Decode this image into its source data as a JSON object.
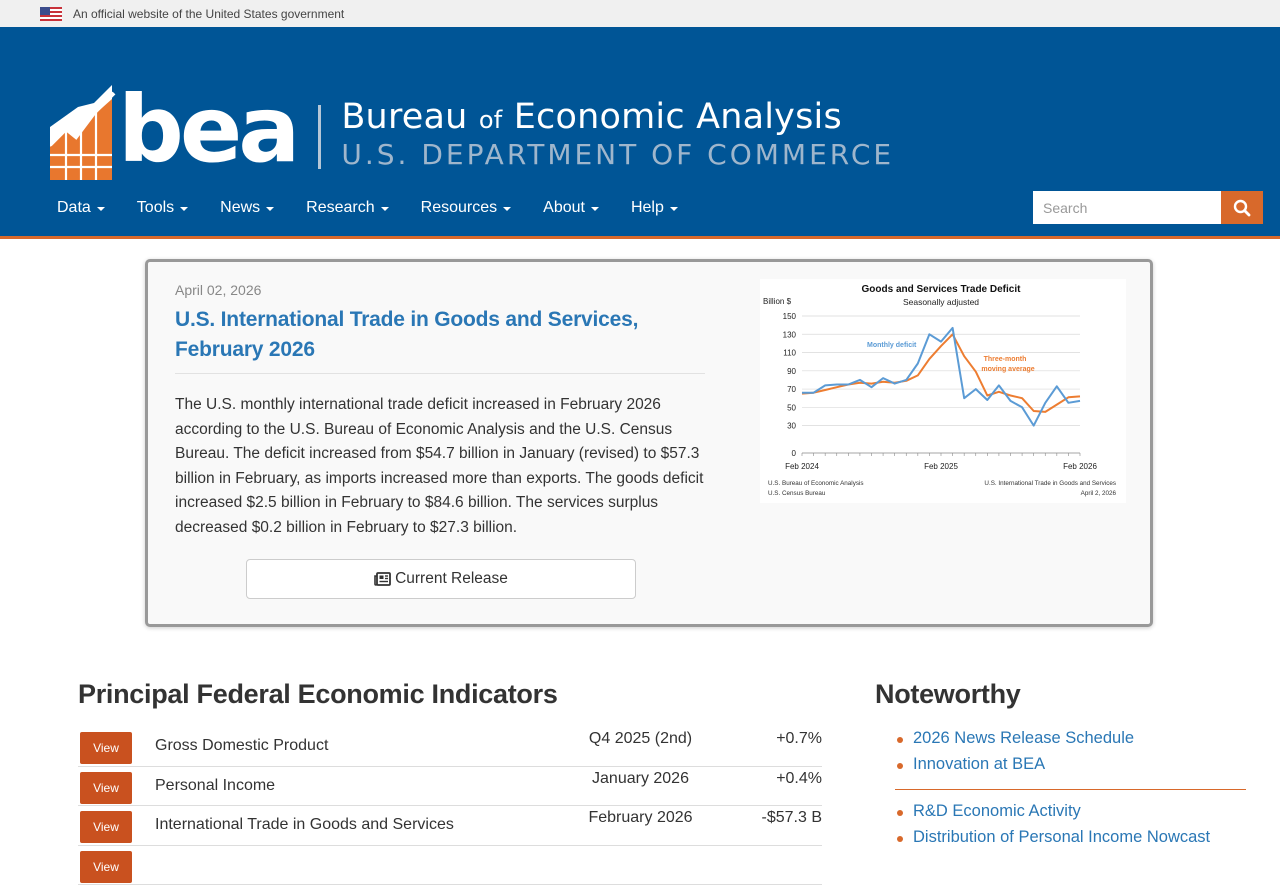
{
  "gov_banner": {
    "text": "An official website of the United States government"
  },
  "header": {
    "logo_abbr": "bea",
    "logo_line1_a": "Bureau ",
    "logo_line1_of": "of",
    "logo_line1_b": " Economic Analysis",
    "logo_line2": "U.S. DEPARTMENT OF COMMERCE"
  },
  "nav": {
    "items": [
      {
        "label": "Data"
      },
      {
        "label": "Tools"
      },
      {
        "label": "News"
      },
      {
        "label": "Research"
      },
      {
        "label": "Resources"
      },
      {
        "label": "About"
      },
      {
        "label": "Help"
      }
    ]
  },
  "search": {
    "placeholder": "Search",
    "icon": "search-icon"
  },
  "feature": {
    "date": "April 02, 2026",
    "title": "U.S. International Trade in Goods and Services, February 2026",
    "body": "The U.S. monthly international trade deficit increased in February 2026 according to the U.S. Bureau of Economic Analysis and the U.S. Census Bureau. The deficit increased from $54.7 billion in January (revised) to $57.3 billion in February, as imports increased more than exports. The goods deficit increased $2.5 billion in February to $84.6 billion. The services surplus decreased $0.2 billion in February to $27.3 billion.",
    "button_label": "Current Release",
    "button_icon": "newspaper-icon"
  },
  "chart_data": {
    "type": "line",
    "title": "Goods and Services Trade Deficit",
    "subtitle": "Seasonally adjusted",
    "ylabel": "Billion $",
    "ylim": [
      0,
      150
    ],
    "yticks": [
      0,
      30,
      50,
      70,
      90,
      110,
      130,
      150
    ],
    "xtick_labels": [
      "Feb 2024",
      "Feb 2025",
      "Feb 2026"
    ],
    "series": [
      {
        "name": "Monthly deficit",
        "color": "#5b9bd5",
        "values": [
          66,
          66,
          74,
          75,
          75,
          80,
          72,
          82,
          76,
          80,
          98,
          130,
          122,
          137,
          60,
          70,
          58,
          74,
          57,
          50,
          30,
          55,
          73,
          55,
          57
        ]
      },
      {
        "name": "Three-month moving average",
        "color": "#ed7d31",
        "values": [
          65,
          66,
          69,
          72,
          75,
          77,
          76,
          78,
          77,
          79,
          85,
          103,
          117,
          130,
          106,
          89,
          63,
          67,
          63,
          60,
          46,
          45,
          53,
          61,
          62
        ]
      }
    ],
    "footer_left": [
      "U.S. Bureau of Economic Analysis",
      "U.S. Census Bureau"
    ],
    "footer_right": [
      "U.S. International Trade in Goods and Services",
      "April 2, 2026"
    ]
  },
  "indicators": {
    "title": "Principal Federal Economic Indicators",
    "view_label": "View",
    "rows": [
      {
        "name": "Gross Domestic Product",
        "period": "Q4 2025 (2nd)",
        "value": "+0.7%"
      },
      {
        "name": "Personal Income",
        "period": "January 2026",
        "value": "+0.4%"
      },
      {
        "name": "International Trade in Goods and Services",
        "period": "February 2026",
        "value": "-$57.3 B"
      }
    ]
  },
  "noteworthy": {
    "title": "Noteworthy",
    "group1": [
      "2026 News Release Schedule",
      "Innovation at BEA"
    ],
    "group2": [
      "R&D Economic Activity",
      "Distribution of Personal Income Nowcast"
    ]
  }
}
